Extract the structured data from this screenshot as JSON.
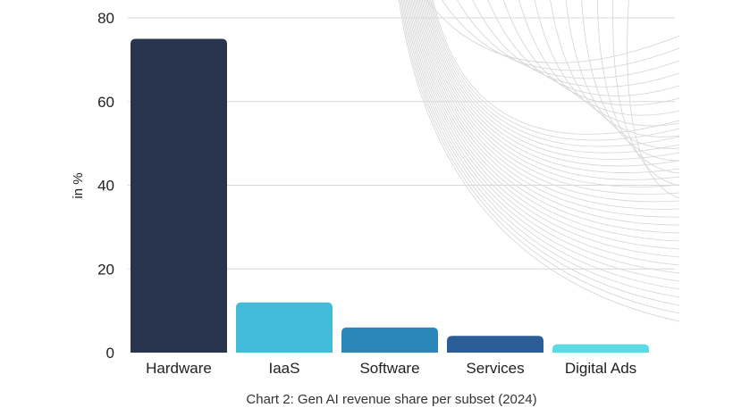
{
  "chart_data": {
    "type": "bar",
    "categories": [
      "Hardware",
      "IaaS",
      "Software",
      "Services",
      "Digital Ads"
    ],
    "values": [
      75,
      12,
      6,
      4,
      2
    ],
    "colors": [
      "#29354f",
      "#42bcd8",
      "#2b87b8",
      "#2b5d96",
      "#5cdbe6"
    ],
    "ylabel": "in %",
    "ylim": [
      0,
      80
    ],
    "yticks": [
      0,
      20,
      40,
      60,
      80
    ],
    "grid": true,
    "caption": "Chart 2: Gen AI revenue share per subset (2024)"
  }
}
